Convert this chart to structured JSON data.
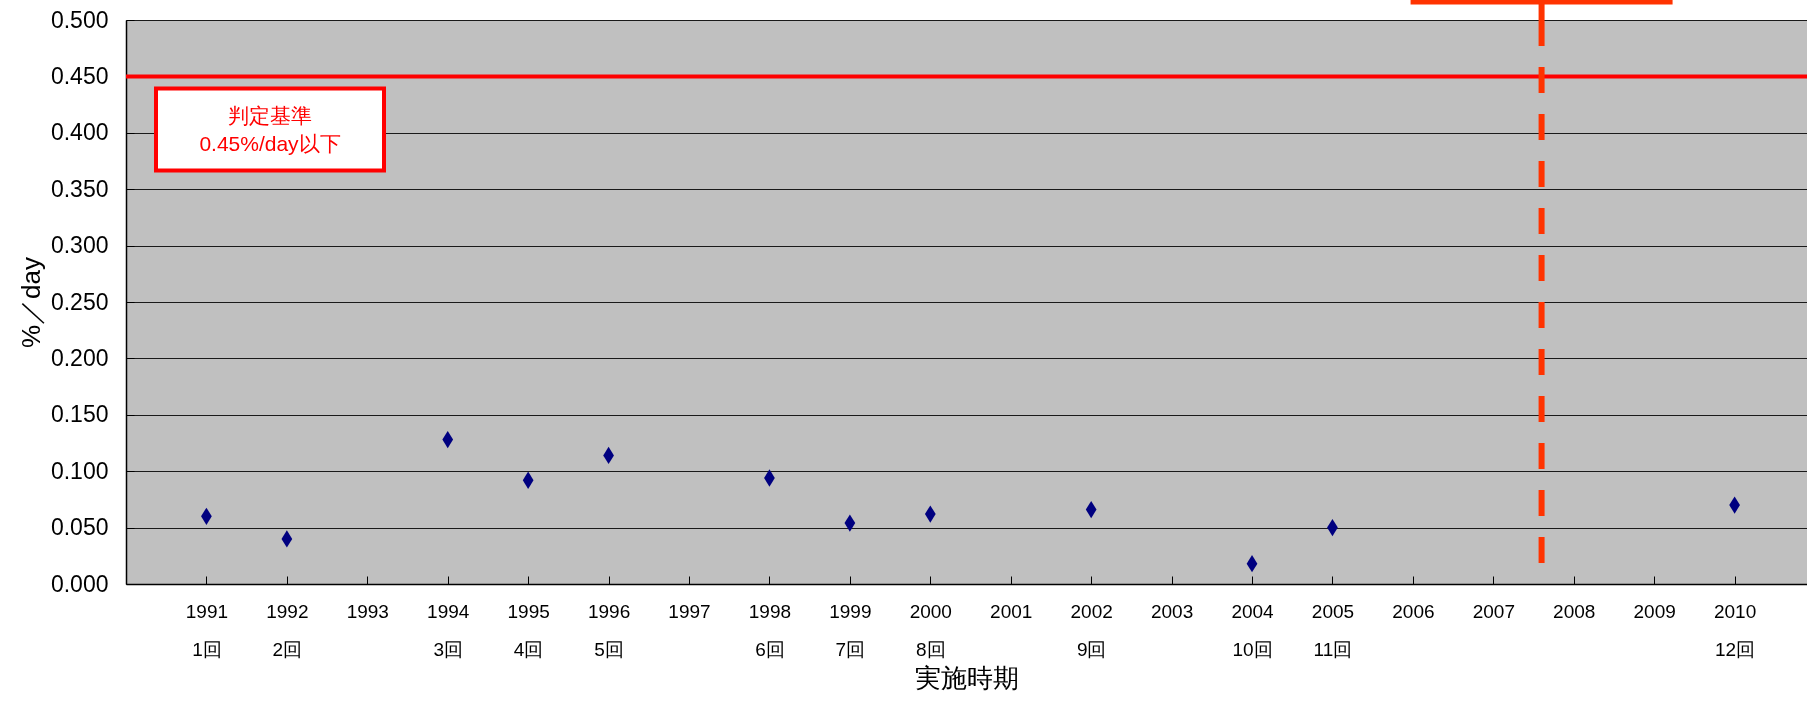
{
  "chart_data": {
    "type": "scatter",
    "xlabel": "実施時期",
    "ylabel": "%／day",
    "x": [
      1991,
      1992,
      1994,
      1995,
      1996,
      1998,
      1999,
      2000,
      2002,
      2004,
      2005,
      2010
    ],
    "values": [
      0.06,
      0.04,
      0.128,
      0.092,
      0.114,
      0.094,
      0.054,
      0.062,
      0.066,
      0.018,
      0.05,
      0.07
    ],
    "color": "#000080",
    "marker": "diamond",
    "xlim": [
      1990,
      2010.9
    ],
    "xticks": [
      {
        "value": 1991,
        "label": "1991\n1回"
      },
      {
        "value": 1992,
        "label": "1992\n2回"
      },
      1993,
      {
        "value": 1994,
        "label": "1994\n3回"
      },
      {
        "value": 1995,
        "label": "1995\n4回"
      },
      {
        "value": 1996,
        "label": "1996\n5回"
      },
      1997,
      {
        "value": 1998,
        "label": "1998\n6回"
      },
      {
        "value": 1999,
        "label": "1999\n7回"
      },
      {
        "value": 2000,
        "label": "2000\n8回"
      },
      2001,
      {
        "value": 2002,
        "label": "2002\n9回"
      },
      2003,
      {
        "value": 2004,
        "label": "2004\n10回"
      },
      {
        "value": 2005,
        "label": "2005\n11回"
      },
      2006,
      2007,
      2008,
      2009,
      {
        "value": 2010,
        "label": "2010\n12回"
      }
    ],
    "ylim": [
      0,
      0.5
    ],
    "yticks": [
      {
        "value": 0,
        "label": "0.000"
      },
      {
        "value": 0.05,
        "label": "0.050"
      },
      {
        "value": 0.1,
        "label": "0.100"
      },
      {
        "value": 0.15,
        "label": "0.150"
      },
      {
        "value": 0.2,
        "label": "0.200"
      },
      {
        "value": 0.25,
        "label": "0.250"
      },
      {
        "value": 0.3,
        "label": "0.300"
      },
      {
        "value": 0.35,
        "label": "0.350"
      },
      {
        "value": 0.4,
        "label": "0.400"
      },
      {
        "value": 0.45,
        "label": "0.450"
      },
      {
        "value": 0.5,
        "label": "0.500"
      }
    ],
    "grid": "y",
    "ref_lines": [
      {
        "axis": "y",
        "value": 0.45,
        "label": "判定基準\n0.45%/day以下",
        "color": "#ff0000"
      },
      {
        "axis": "x",
        "value": 2007.6,
        "color": "#ff3300",
        "line_style": "dashed"
      }
    ]
  }
}
